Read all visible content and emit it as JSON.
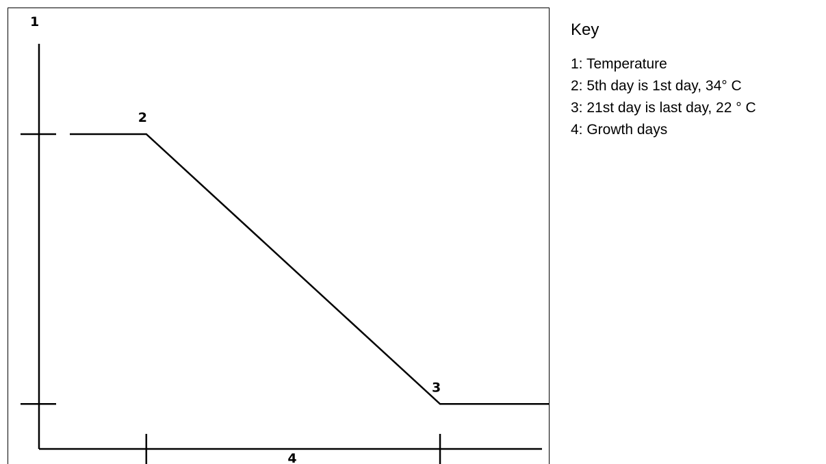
{
  "chart_data": {
    "type": "line",
    "axis_labels": {
      "y": "1",
      "x": "4"
    },
    "series": [
      {
        "points": [
          {
            "x": 0,
            "y": 34
          },
          {
            "x": 5,
            "y": 34
          },
          {
            "x": 21,
            "y": 22
          },
          {
            "x": 27,
            "y": 22
          }
        ]
      }
    ],
    "annotations": [
      {
        "label": "2",
        "x": 5,
        "y": 34
      },
      {
        "label": "3",
        "x": 21,
        "y": 22
      }
    ],
    "x_ticks": [
      5,
      21
    ],
    "y_ticks": [
      34,
      22
    ],
    "xlim": [
      -2,
      27
    ],
    "ylim": [
      19.3,
      39.6
    ],
    "grid": false
  },
  "key": {
    "title": "Key",
    "items": [
      "1: Temperature",
      "2: 5th day is 1st day, 34° C",
      "3: 21st day is last day, 22 ° C",
      "4: Growth days"
    ]
  }
}
